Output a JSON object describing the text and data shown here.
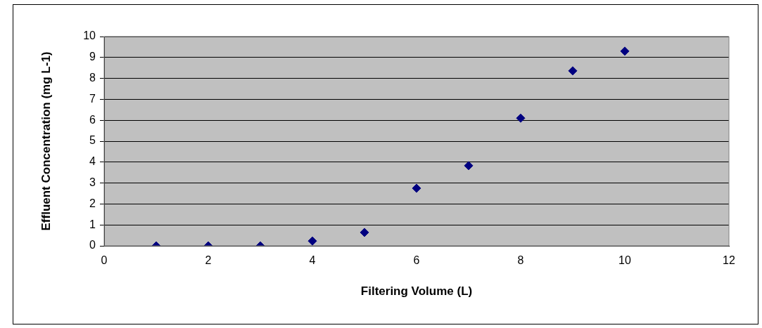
{
  "chart_data": {
    "type": "scatter",
    "xlabel": "Filtering Volume (L)",
    "ylabel": "Effluent Concentration (mg L-1)",
    "x": [
      1,
      2,
      3,
      4,
      5,
      6,
      7,
      8,
      9,
      10
    ],
    "series": [
      {
        "color": "#000080",
        "values": [
          0,
          0,
          0,
          0.23,
          0.64,
          2.75,
          3.83,
          6.1,
          8.36,
          9.3
        ]
      }
    ],
    "xlim": [
      0,
      12
    ],
    "xticks": [
      0,
      2,
      4,
      6,
      8,
      10,
      12
    ],
    "ylim": [
      0,
      10
    ],
    "yticks": [
      0,
      1,
      2,
      3,
      4,
      5,
      6,
      7,
      8,
      9,
      10
    ],
    "grid": "y",
    "legend": false,
    "marker": "diamond"
  }
}
